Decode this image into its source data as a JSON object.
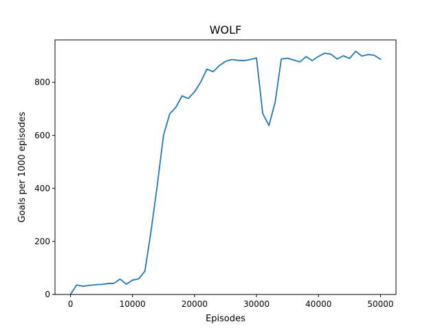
{
  "chart_data": {
    "type": "line",
    "title": "WOLF",
    "xlabel": "Episodes",
    "ylabel": "Goals per 1000 episodes",
    "xlim": [
      -2500,
      52500
    ],
    "ylim": [
      0,
      960
    ],
    "xticks": [
      0,
      10000,
      20000,
      30000,
      40000,
      50000
    ],
    "yticks": [
      0,
      200,
      400,
      600,
      800
    ],
    "grid": false,
    "series_color": "#1f77b4",
    "series": [
      {
        "x": [
          0,
          1000,
          2000,
          3000,
          4000,
          5000,
          6000,
          7000,
          8000,
          9000,
          10000,
          11000,
          12000,
          13000,
          14000,
          15000,
          16000,
          17000,
          18000,
          19000,
          20000,
          21000,
          22000,
          23000,
          24000,
          25000,
          26000,
          27000,
          28000,
          29000,
          30000,
          31000,
          32000,
          33000,
          34000,
          35000,
          36000,
          37000,
          38000,
          39000,
          40000,
          41000,
          42000,
          43000,
          44000,
          45000,
          46000,
          47000,
          48000,
          49000,
          50000
        ],
        "values": [
          0,
          36,
          31,
          34,
          37,
          38,
          41,
          42,
          58,
          39,
          54,
          59,
          88,
          240,
          413,
          600,
          681,
          706,
          749,
          739,
          764,
          801,
          850,
          840,
          863,
          879,
          886,
          883,
          882,
          886,
          892,
          683,
          637,
          724,
          888,
          891,
          884,
          877,
          897,
          882,
          898,
          910,
          906,
          888,
          900,
          890,
          917,
          899,
          905,
          902,
          887
        ]
      }
    ]
  }
}
